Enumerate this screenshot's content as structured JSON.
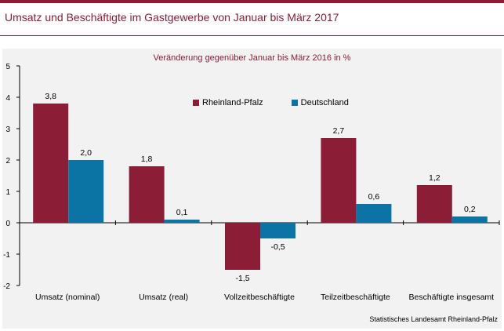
{
  "header": {
    "title": "Umsatz und Beschäftigte im Gastgewerbe von Januar bis März 2017"
  },
  "source": "Statistisches Landesamt Rheinland-Pfalz",
  "colors": {
    "accent": "#8c1d36",
    "rheinland_pfalz": "#8c1d36",
    "deutschland": "#0c74a4"
  },
  "chart_data": {
    "type": "bar",
    "title": "Veränderung gegenüber Januar bis März 2016 in %",
    "categories": [
      "Umsatz (nominal)",
      "Umsatz (real)",
      "Vollzeitbeschäftigte",
      "Teilzeitbeschäftigte",
      "Beschäftigte insgesamt"
    ],
    "series": [
      {
        "name": "Rheinland-Pfalz",
        "values": [
          3.8,
          1.8,
          -1.5,
          2.7,
          1.2
        ],
        "labels": [
          "3,8",
          "1,8",
          "-1,5",
          "2,7",
          "1,2"
        ]
      },
      {
        "name": "Deutschland",
        "values": [
          2.0,
          0.1,
          -0.5,
          0.6,
          0.2
        ],
        "labels": [
          "2,0",
          "0,1",
          "-0,5",
          "0,6",
          "0,2"
        ]
      }
    ],
    "ylim": [
      -2,
      5
    ],
    "yticks": [
      -2,
      -1,
      0,
      1,
      2,
      3,
      4,
      5
    ],
    "ytick_labels": [
      "-2",
      "-1",
      "0",
      "1",
      "2",
      "3",
      "4",
      "5"
    ],
    "grid": false,
    "legend_position": "top-center"
  }
}
